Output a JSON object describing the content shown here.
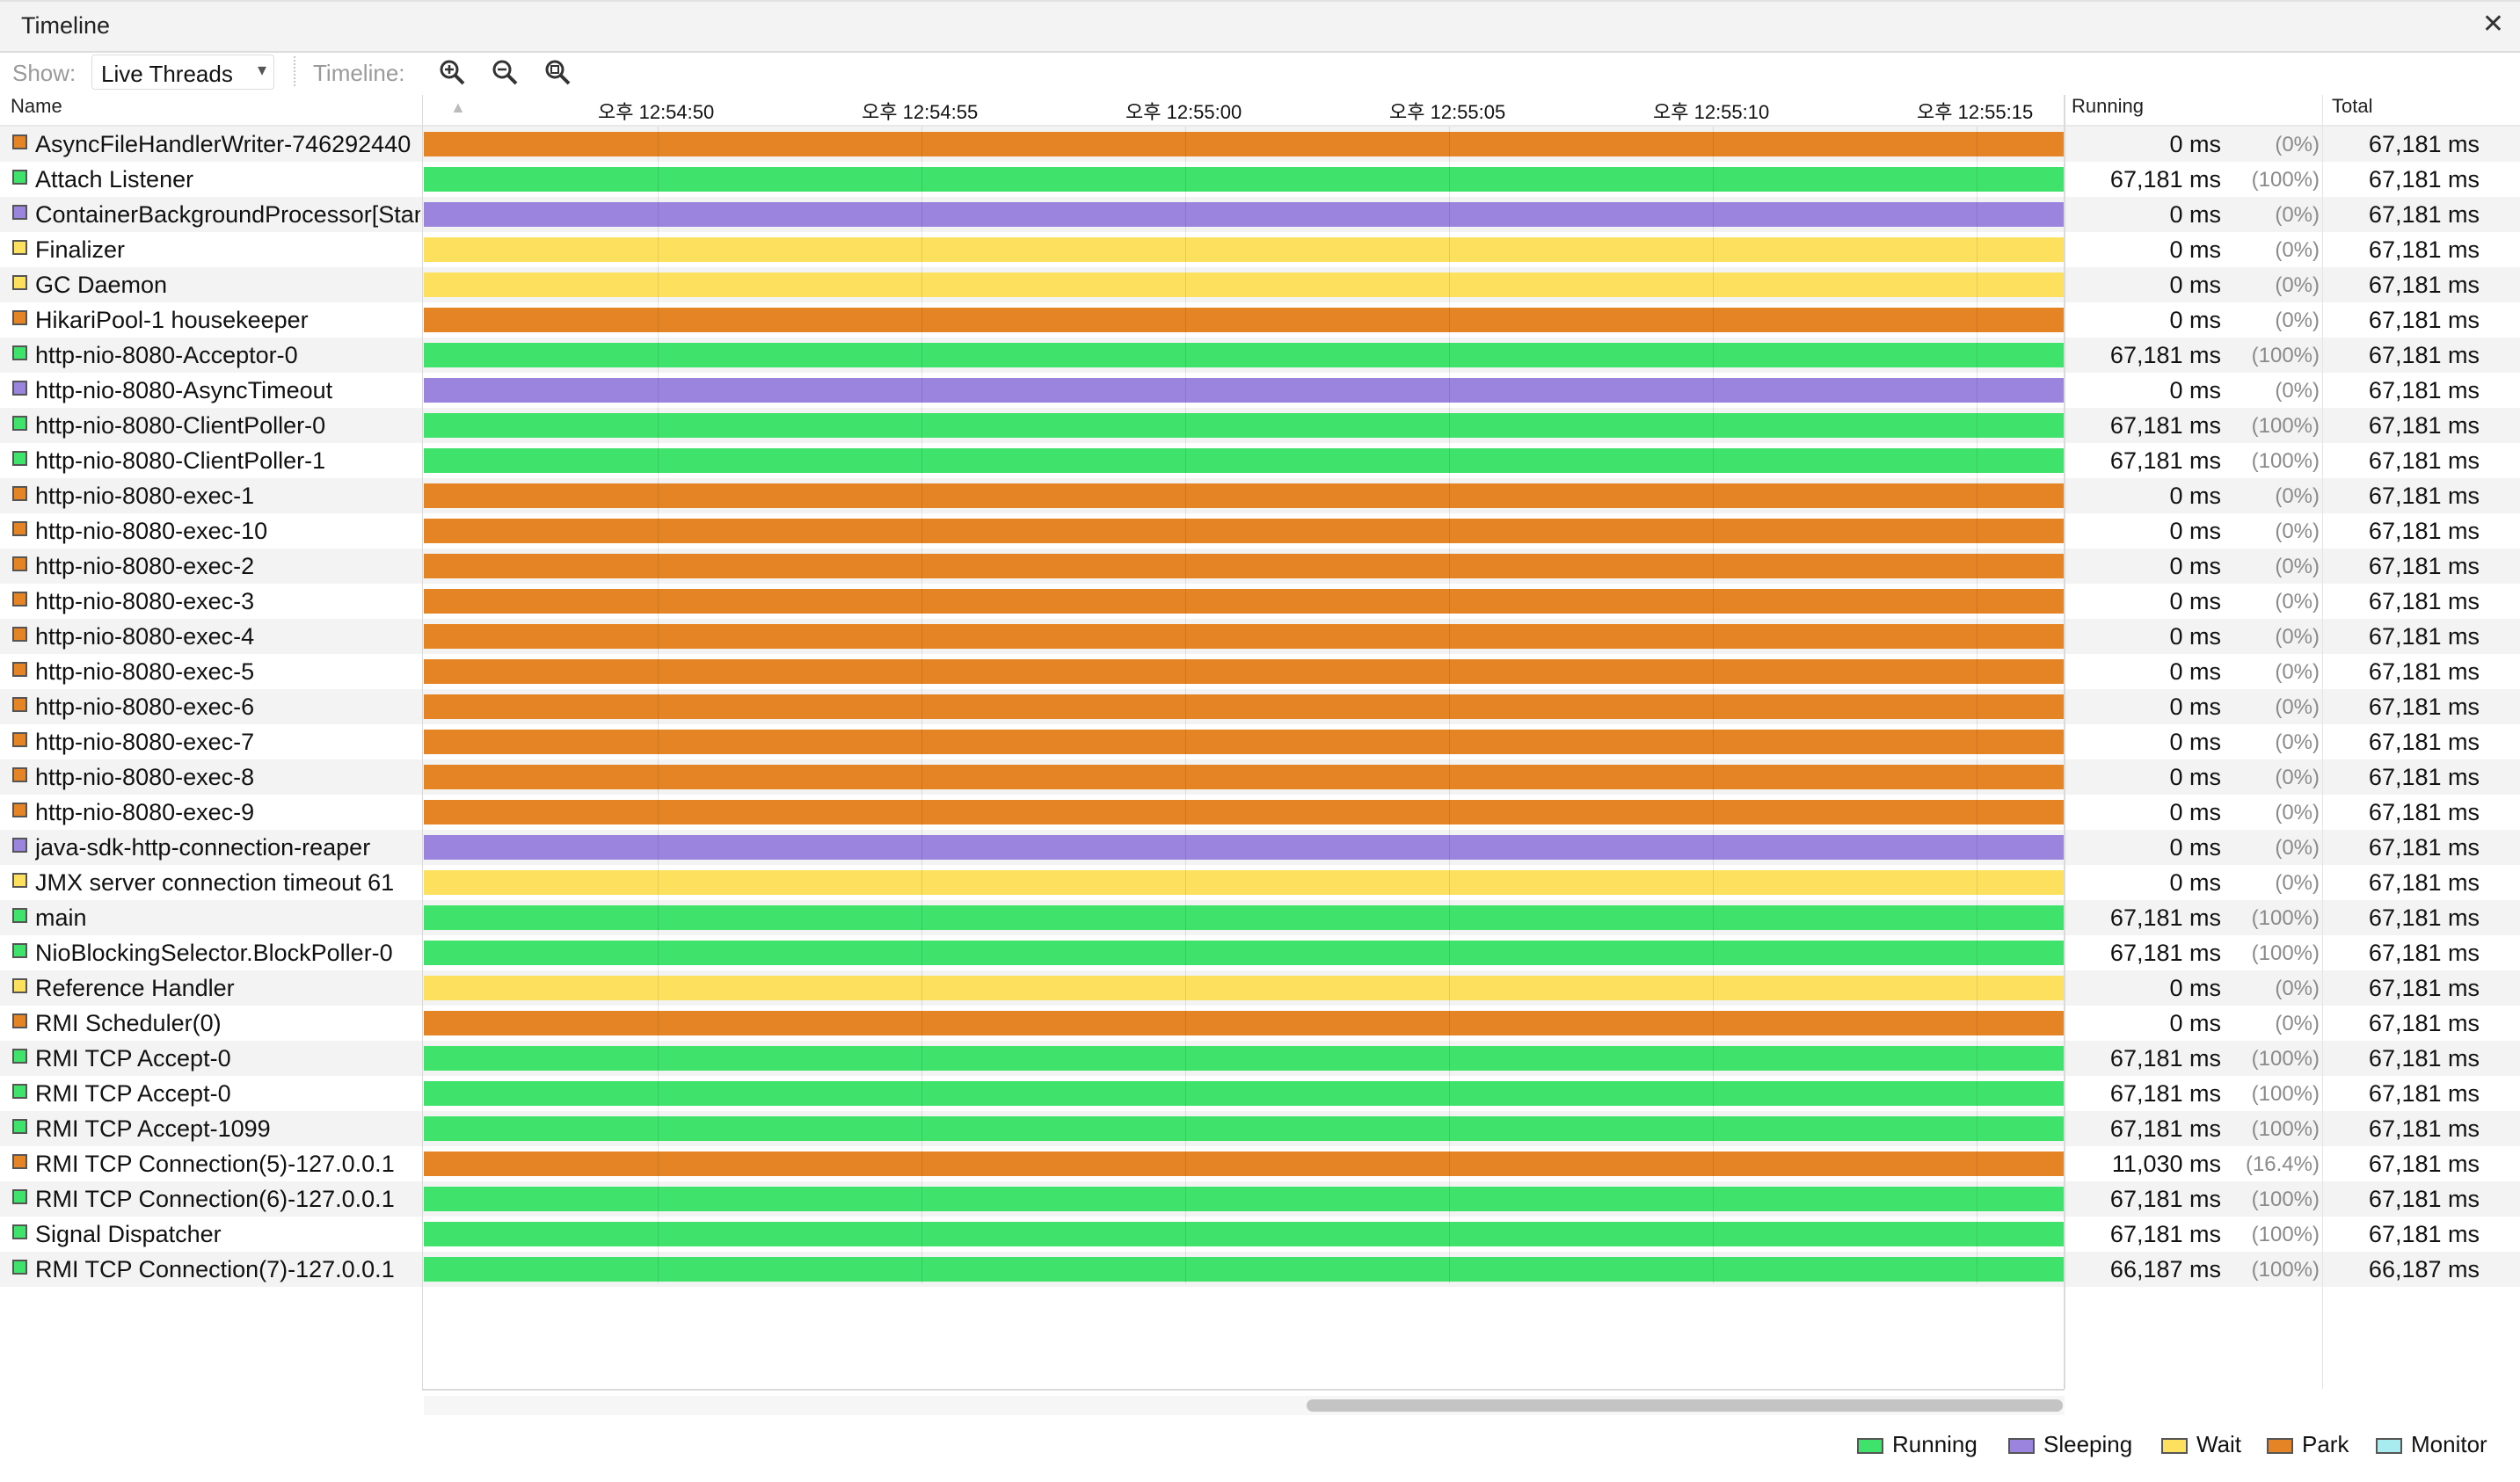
{
  "window": {
    "title": "Timeline",
    "close_icon": "close-icon"
  },
  "toolbar": {
    "show_label": "Show:",
    "show_value": "Live Threads",
    "timeline_label": "Timeline:",
    "zoom_in_icon": "zoom-in-icon",
    "zoom_out_icon": "zoom-out-icon",
    "zoom_fit_icon": "zoom-fit-icon"
  },
  "columns": {
    "name": "Name",
    "running": "Running",
    "total": "Total"
  },
  "timeline_ticks": [
    "오후 12:54:50",
    "오후 12:54:55",
    "오후 12:55:00",
    "오후 12:55:05",
    "오후 12:55:10",
    "오후 12:55:15"
  ],
  "state_colors": {
    "Running": "#3fe36b",
    "Sleeping": "#9a84de",
    "Wait": "#fde15e",
    "Park": "#e58424",
    "Monitor": "#a9ecf0"
  },
  "threads": [
    {
      "name": "AsyncFileHandlerWriter-746292440",
      "state": "Park",
      "running": "0 ms",
      "pct": "(0%)",
      "total": "67,181 ms"
    },
    {
      "name": "Attach Listener",
      "state": "Running",
      "running": "67,181 ms",
      "pct": "(100%)",
      "total": "67,181 ms"
    },
    {
      "name": "ContainerBackgroundProcessor[StandardEngine[Tomcat]]",
      "state": "Sleeping",
      "running": "0 ms",
      "pct": "(0%)",
      "total": "67,181 ms"
    },
    {
      "name": "Finalizer",
      "state": "Wait",
      "running": "0 ms",
      "pct": "(0%)",
      "total": "67,181 ms"
    },
    {
      "name": "GC Daemon",
      "state": "Wait",
      "running": "0 ms",
      "pct": "(0%)",
      "total": "67,181 ms"
    },
    {
      "name": "HikariPool-1 housekeeper",
      "state": "Park",
      "running": "0 ms",
      "pct": "(0%)",
      "total": "67,181 ms"
    },
    {
      "name": "http-nio-8080-Acceptor-0",
      "state": "Running",
      "running": "67,181 ms",
      "pct": "(100%)",
      "total": "67,181 ms"
    },
    {
      "name": "http-nio-8080-AsyncTimeout",
      "state": "Sleeping",
      "running": "0 ms",
      "pct": "(0%)",
      "total": "67,181 ms"
    },
    {
      "name": "http-nio-8080-ClientPoller-0",
      "state": "Running",
      "running": "67,181 ms",
      "pct": "(100%)",
      "total": "67,181 ms"
    },
    {
      "name": "http-nio-8080-ClientPoller-1",
      "state": "Running",
      "running": "67,181 ms",
      "pct": "(100%)",
      "total": "67,181 ms"
    },
    {
      "name": "http-nio-8080-exec-1",
      "state": "Park",
      "running": "0 ms",
      "pct": "(0%)",
      "total": "67,181 ms"
    },
    {
      "name": "http-nio-8080-exec-10",
      "state": "Park",
      "running": "0 ms",
      "pct": "(0%)",
      "total": "67,181 ms"
    },
    {
      "name": "http-nio-8080-exec-2",
      "state": "Park",
      "running": "0 ms",
      "pct": "(0%)",
      "total": "67,181 ms"
    },
    {
      "name": "http-nio-8080-exec-3",
      "state": "Park",
      "running": "0 ms",
      "pct": "(0%)",
      "total": "67,181 ms"
    },
    {
      "name": "http-nio-8080-exec-4",
      "state": "Park",
      "running": "0 ms",
      "pct": "(0%)",
      "total": "67,181 ms"
    },
    {
      "name": "http-nio-8080-exec-5",
      "state": "Park",
      "running": "0 ms",
      "pct": "(0%)",
      "total": "67,181 ms"
    },
    {
      "name": "http-nio-8080-exec-6",
      "state": "Park",
      "running": "0 ms",
      "pct": "(0%)",
      "total": "67,181 ms"
    },
    {
      "name": "http-nio-8080-exec-7",
      "state": "Park",
      "running": "0 ms",
      "pct": "(0%)",
      "total": "67,181 ms"
    },
    {
      "name": "http-nio-8080-exec-8",
      "state": "Park",
      "running": "0 ms",
      "pct": "(0%)",
      "total": "67,181 ms"
    },
    {
      "name": "http-nio-8080-exec-9",
      "state": "Park",
      "running": "0 ms",
      "pct": "(0%)",
      "total": "67,181 ms"
    },
    {
      "name": "java-sdk-http-connection-reaper",
      "state": "Sleeping",
      "running": "0 ms",
      "pct": "(0%)",
      "total": "67,181 ms"
    },
    {
      "name": "JMX server connection timeout 61",
      "state": "Wait",
      "running": "0 ms",
      "pct": "(0%)",
      "total": "67,181 ms"
    },
    {
      "name": "main",
      "state": "Running",
      "running": "67,181 ms",
      "pct": "(100%)",
      "total": "67,181 ms"
    },
    {
      "name": "NioBlockingSelector.BlockPoller-0",
      "state": "Running",
      "running": "67,181 ms",
      "pct": "(100%)",
      "total": "67,181 ms"
    },
    {
      "name": "Reference Handler",
      "state": "Wait",
      "running": "0 ms",
      "pct": "(0%)",
      "total": "67,181 ms"
    },
    {
      "name": "RMI Scheduler(0)",
      "state": "Park",
      "running": "0 ms",
      "pct": "(0%)",
      "total": "67,181 ms"
    },
    {
      "name": "RMI TCP Accept-0",
      "state": "Running",
      "running": "67,181 ms",
      "pct": "(100%)",
      "total": "67,181 ms"
    },
    {
      "name": "RMI TCP Accept-0",
      "state": "Running",
      "running": "67,181 ms",
      "pct": "(100%)",
      "total": "67,181 ms"
    },
    {
      "name": "RMI TCP Accept-1099",
      "state": "Running",
      "running": "67,181 ms",
      "pct": "(100%)",
      "total": "67,181 ms"
    },
    {
      "name": "RMI TCP Connection(5)-127.0.0.1",
      "state": "Park",
      "running": "11,030 ms",
      "pct": "(16.4%)",
      "total": "67,181 ms"
    },
    {
      "name": "RMI TCP Connection(6)-127.0.0.1",
      "state": "Running",
      "running": "67,181 ms",
      "pct": "(100%)",
      "total": "67,181 ms"
    },
    {
      "name": "Signal Dispatcher",
      "state": "Running",
      "running": "67,181 ms",
      "pct": "(100%)",
      "total": "67,181 ms"
    },
    {
      "name": "RMI TCP Connection(7)-127.0.0.1",
      "state": "Running",
      "running": "66,187 ms",
      "pct": "(100%)",
      "total": "66,187 ms"
    }
  ],
  "legend": [
    {
      "label": "Running",
      "state": "Running"
    },
    {
      "label": "Sleeping",
      "state": "Sleeping"
    },
    {
      "label": "Wait",
      "state": "Wait"
    },
    {
      "label": "Park",
      "state": "Park"
    },
    {
      "label": "Monitor",
      "state": "Monitor"
    }
  ]
}
